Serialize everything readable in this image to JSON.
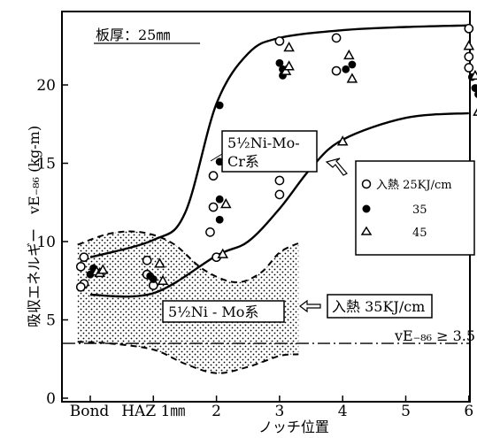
{
  "chart_data": {
    "type": "scatter",
    "title": "板厚：25㎜",
    "xlabel": "ノッチ位置",
    "ylabel": "吸収エネルギー　vE₋₈₆ (kg-m)",
    "x_categories": [
      "Bond",
      "HAZ 1㎜",
      "2",
      "3",
      "4",
      "5",
      "6"
    ],
    "x_positions": [
      0,
      1,
      2,
      3,
      4,
      5,
      6
    ],
    "y_ticks": [
      "0",
      "5",
      "10",
      "15",
      "20"
    ],
    "ylim": [
      0,
      24
    ],
    "legend": {
      "entries": [
        {
          "marker": "open-circle",
          "label": "入熱 25KJ/cm"
        },
        {
          "marker": "filled-circle",
          "label": "35"
        },
        {
          "marker": "triangle",
          "label": "45"
        }
      ]
    },
    "annotations": {
      "upper_curve": "5½Ni-Mo-\nCr系",
      "lower_curve": "5½Ni - Mo系",
      "lower_curve_heat": "入熱 35KJ/cm",
      "criterion": "vE₋₈₆ ≥ 3.5",
      "criterion_value": 3.5
    },
    "series": [
      {
        "name": "入熱 25KJ/cm",
        "marker": "open-circle",
        "points": [
          [
            -0.1,
            9.0
          ],
          [
            -0.15,
            8.4
          ],
          [
            -0.1,
            7.3
          ],
          [
            -0.15,
            7.1
          ],
          [
            0.9,
            8.8
          ],
          [
            0.9,
            7.9
          ],
          [
            1.0,
            7.2
          ],
          [
            1.9,
            10.6
          ],
          [
            1.95,
            14.2
          ],
          [
            1.95,
            12.2
          ],
          [
            2.0,
            9.0
          ],
          [
            3.0,
            22.8
          ],
          [
            3.0,
            13.9
          ],
          [
            3.0,
            13.0
          ],
          [
            3.9,
            23.0
          ],
          [
            3.9,
            20.9
          ],
          [
            6.0,
            23.6
          ],
          [
            6.0,
            21.8
          ],
          [
            6.0,
            21.1
          ]
        ]
      },
      {
        "name": "35",
        "marker": "filled-circle",
        "points": [
          [
            0.05,
            8.3
          ],
          [
            0.0,
            7.9
          ],
          [
            0.95,
            7.8
          ],
          [
            1.0,
            7.6
          ],
          [
            2.05,
            18.7
          ],
          [
            2.05,
            15.1
          ],
          [
            2.05,
            12.7
          ],
          [
            2.05,
            11.4
          ],
          [
            3.0,
            21.4
          ],
          [
            3.05,
            21.0
          ],
          [
            3.05,
            20.6
          ],
          [
            4.05,
            21.0
          ],
          [
            4.15,
            21.3
          ],
          [
            6.05,
            20.5
          ],
          [
            6.1,
            19.8
          ],
          [
            6.15,
            19.4
          ]
        ]
      },
      {
        "name": "45",
        "marker": "triangle",
        "points": [
          [
            0.1,
            8.1
          ],
          [
            0.15,
            8.0
          ],
          [
            0.2,
            8.2
          ],
          [
            1.1,
            8.6
          ],
          [
            1.15,
            7.5
          ],
          [
            2.15,
            12.4
          ],
          [
            2.1,
            9.2
          ],
          [
            3.15,
            22.4
          ],
          [
            3.1,
            20.9
          ],
          [
            3.15,
            21.2
          ],
          [
            4.1,
            21.9
          ],
          [
            4.15,
            20.4
          ],
          [
            4.0,
            16.4
          ],
          [
            6.0,
            22.5
          ],
          [
            6.1,
            20.6
          ],
          [
            6.15,
            18.3
          ]
        ]
      }
    ],
    "curves": [
      {
        "name": "5½Ni-Mo-Cr系",
        "style": "solid",
        "points": [
          [
            0,
            9.0
          ],
          [
            1.0,
            10.1
          ],
          [
            1.5,
            11.8
          ],
          [
            2.0,
            18.8
          ],
          [
            2.5,
            22.0
          ],
          [
            3.0,
            23.0
          ],
          [
            4.0,
            23.5
          ],
          [
            5.0,
            23.7
          ],
          [
            6.0,
            23.8
          ]
        ]
      },
      {
        "name": "5½Ni-Mo系",
        "style": "solid",
        "points": [
          [
            0,
            6.6
          ],
          [
            1.0,
            6.7
          ],
          [
            2.0,
            9.1
          ],
          [
            2.5,
            10.0
          ],
          [
            3.0,
            12.1
          ],
          [
            3.5,
            14.7
          ],
          [
            4.0,
            16.5
          ],
          [
            5.0,
            17.9
          ],
          [
            6.0,
            18.2
          ]
        ]
      }
    ],
    "scatter_band": {
      "name": "5½Ni-Mo系",
      "style": "dotted-fill",
      "upper": [
        [
          -0.2,
          9.8
        ],
        [
          0.3,
          10.5
        ],
        [
          0.8,
          10.6
        ],
        [
          1.3,
          9.9
        ],
        [
          1.8,
          8.2
        ],
        [
          2.3,
          7.4
        ],
        [
          2.7,
          8.0
        ],
        [
          3.0,
          9.3
        ],
        [
          3.3,
          9.9
        ]
      ],
      "lower": [
        [
          -0.2,
          3.6
        ],
        [
          0.3,
          3.5
        ],
        [
          1.0,
          3.1
        ],
        [
          1.5,
          2.2
        ],
        [
          2.0,
          1.6
        ],
        [
          2.5,
          2.0
        ],
        [
          3.0,
          2.7
        ],
        [
          3.3,
          2.8
        ]
      ]
    }
  }
}
